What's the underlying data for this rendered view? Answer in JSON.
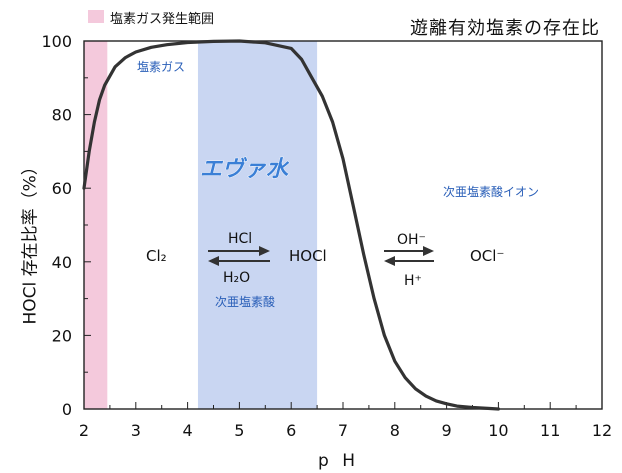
{
  "legend": {
    "text": "塩素ガス発生範囲",
    "color": "#f4c9dc"
  },
  "chart_data": {
    "type": "line",
    "title": "遊離有効塩素の存在比",
    "xlabel": "p H",
    "ylabel": "HOCl 存在比率（%）",
    "xlim": [
      2,
      12
    ],
    "ylim": [
      0,
      100
    ],
    "xticks": [
      2,
      3,
      4,
      5,
      6,
      7,
      8,
      9,
      10,
      11,
      12
    ],
    "yticks": [
      0,
      20,
      40,
      60,
      80,
      100
    ],
    "grid": false,
    "series": [
      {
        "color": "#333333",
        "x": [
          2.0,
          2.1,
          2.2,
          2.3,
          2.4,
          2.6,
          2.8,
          3.0,
          3.3,
          3.6,
          4.0,
          4.5,
          5.0,
          5.5,
          6.0,
          6.2,
          6.4,
          6.6,
          6.8,
          7.0,
          7.2,
          7.4,
          7.6,
          7.8,
          8.0,
          8.2,
          8.4,
          8.6,
          8.8,
          9.0,
          9.2,
          9.5,
          9.8,
          10.0
        ],
        "y": [
          60,
          70,
          78,
          84,
          88,
          93,
          95.5,
          97,
          98.3,
          99,
          99.6,
          99.9,
          100,
          99.5,
          98,
          95,
          90,
          85,
          78,
          68,
          55,
          42,
          30,
          20,
          13,
          8.5,
          5.5,
          3.5,
          2.2,
          1.4,
          0.8,
          0.4,
          0.15,
          0
        ]
      }
    ],
    "regions": [
      {
        "label": "塩素ガス",
        "x_from": 2.0,
        "x_to": 2.45,
        "color": "#f4c9dc"
      },
      {
        "label": "次亜塩素酸",
        "x_from": 4.2,
        "x_to": 6.5,
        "color": "#c9d6f2"
      }
    ],
    "annotations": {
      "region_label_gas": "塩素ガス",
      "eva_label": "エヴァ水",
      "ion_region_label": "次亜塩素酸イオン",
      "region_label_hocl": "次亜塩素酸",
      "species_cl2": "Cl₂",
      "species_hocl": "HOCl",
      "species_ocl": "OCl⁻",
      "arrow1_top": "HCl",
      "arrow1_bottom": "H₂O",
      "arrow2_top": "OH⁻",
      "arrow2_bottom": "H⁺"
    },
    "label_color": "#2a5fb8"
  }
}
